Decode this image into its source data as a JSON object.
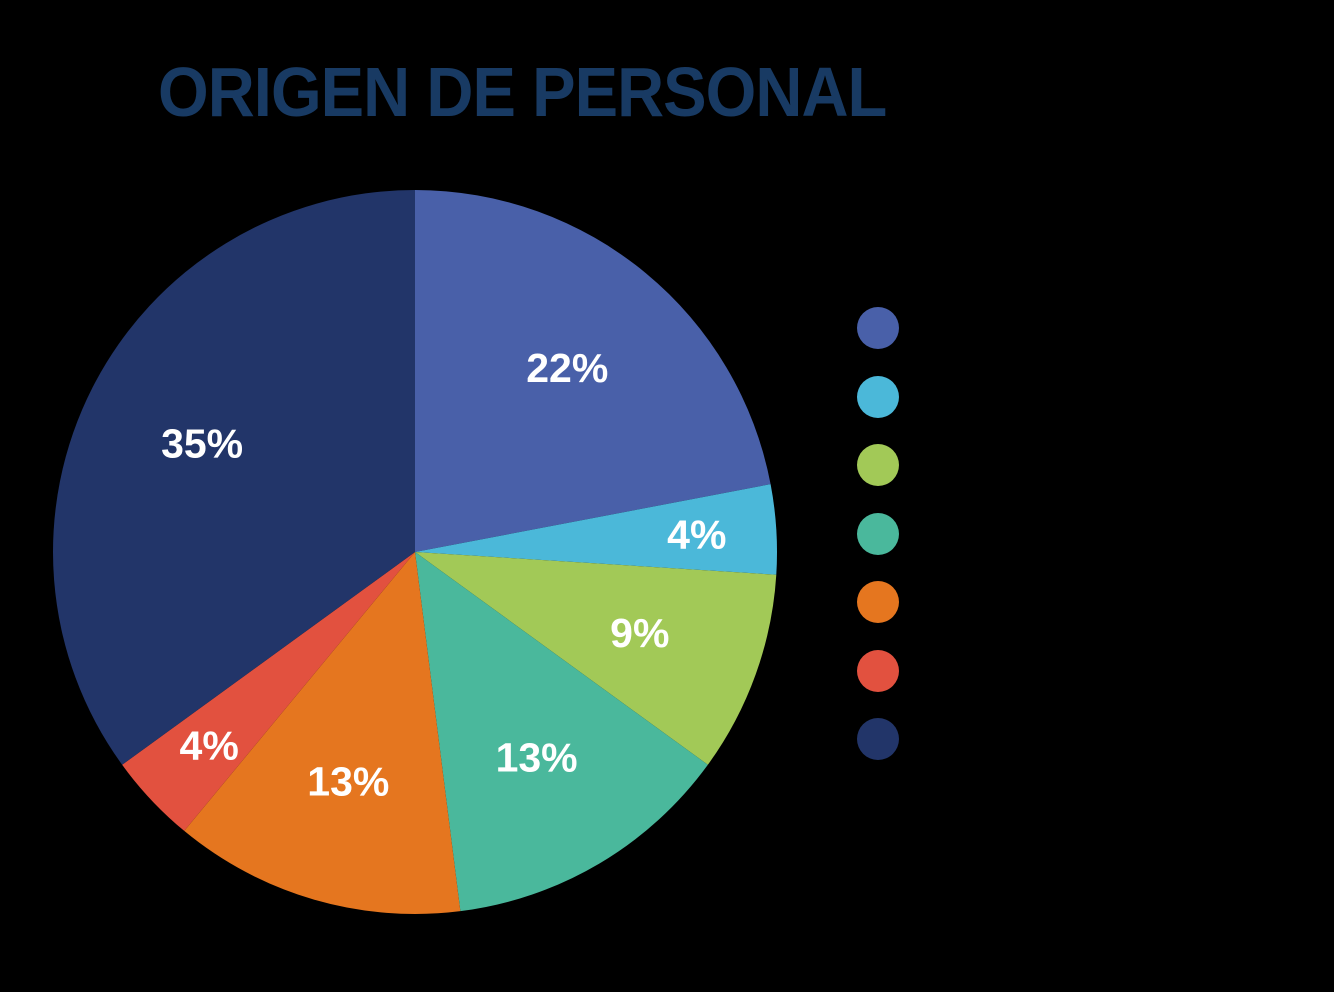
{
  "colors": {
    "title": "#183a63",
    "background": "#000000",
    "slice_label": "#ffffff"
  },
  "chart_data": {
    "type": "pie",
    "title": "ORIGEN DE PERSONAL",
    "values": [
      22,
      4,
      9,
      13,
      13,
      4,
      35
    ],
    "labels": [
      "22%",
      "4%",
      "9%",
      "13%",
      "13%",
      "4%",
      "35%"
    ],
    "colors": [
      "#4960a9",
      "#4bb8d9",
      "#a2c957",
      "#4ab89c",
      "#e5761f",
      "#e2513f",
      "#223569"
    ],
    "start": "12 o'clock",
    "direction": "clockwise",
    "legend": "right",
    "legend_entries": [
      "",
      "",
      "",
      "",
      "",
      "",
      ""
    ]
  }
}
